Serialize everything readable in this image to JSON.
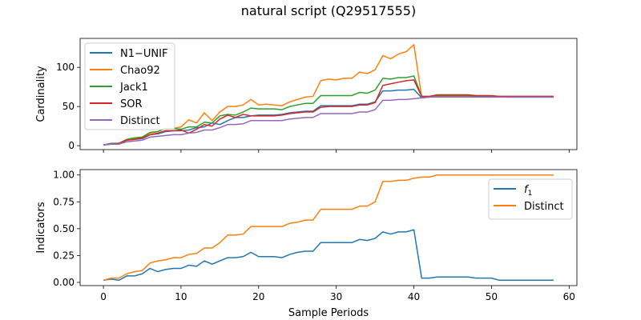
{
  "figure": {
    "title": "natural script (Q29517555)"
  },
  "chart_data": [
    {
      "type": "line",
      "ylabel": "Cardinality",
      "xlabel": "",
      "xlim": [
        -3,
        61
      ],
      "ylim": [
        -5,
        137
      ],
      "xticks": [
        0,
        10,
        20,
        30,
        40,
        50,
        60
      ],
      "show_xticklabels": false,
      "yticks": [
        0,
        50,
        100
      ],
      "legend_position": "upper-left",
      "series": [
        {
          "name": "N1−UNIF",
          "color": "#1f77b4",
          "x": [
            0,
            1,
            2,
            3,
            4,
            5,
            6,
            7,
            8,
            9,
            10,
            11,
            12,
            13,
            14,
            15,
            16,
            17,
            18,
            19,
            20,
            21,
            22,
            23,
            24,
            25,
            26,
            27,
            28,
            29,
            30,
            31,
            32,
            33,
            34,
            35,
            36,
            37,
            38,
            39,
            40,
            41,
            42,
            43,
            44,
            45,
            46,
            47,
            48,
            49,
            50,
            51,
            52,
            53,
            54,
            55,
            56,
            57,
            58
          ],
          "y": [
            1,
            2,
            2,
            7,
            8,
            9,
            14,
            15,
            18,
            19,
            19,
            20,
            23,
            24,
            29,
            27,
            32,
            36,
            36,
            38,
            39,
            39,
            39,
            40,
            42,
            43,
            44,
            44,
            51,
            51,
            51,
            51,
            51,
            53,
            53,
            56,
            70,
            70,
            71,
            71,
            72,
            61,
            62,
            64,
            64,
            64,
            64,
            64,
            64,
            63,
            63,
            63,
            62,
            62,
            62,
            62,
            62,
            62,
            62
          ]
        },
        {
          "name": "Chao92",
          "color": "#ff7f0e",
          "x": [
            0,
            1,
            2,
            3,
            4,
            5,
            6,
            7,
            8,
            9,
            10,
            11,
            12,
            13,
            14,
            15,
            16,
            17,
            18,
            19,
            20,
            21,
            22,
            23,
            24,
            25,
            26,
            27,
            28,
            29,
            30,
            31,
            32,
            33,
            34,
            35,
            36,
            37,
            38,
            39,
            40,
            41,
            42,
            43,
            44,
            45,
            46,
            47,
            48,
            49,
            50,
            51,
            52,
            53,
            54,
            55,
            56,
            57,
            58
          ],
          "y": [
            1,
            2,
            3,
            8,
            9,
            10,
            16,
            18,
            22,
            22,
            24,
            33,
            29,
            42,
            32,
            43,
            50,
            50,
            52,
            59,
            52,
            53,
            52,
            51,
            56,
            59,
            62,
            63,
            83,
            85,
            84,
            86,
            86,
            94,
            92,
            97,
            115,
            111,
            117,
            120,
            129,
            62,
            62,
            63,
            63,
            63,
            63,
            63,
            63,
            63,
            63,
            63,
            63,
            63,
            63,
            63,
            63,
            63,
            63
          ]
        },
        {
          "name": "Jack1",
          "color": "#2ca02c",
          "x": [
            0,
            1,
            2,
            3,
            4,
            5,
            6,
            7,
            8,
            9,
            10,
            11,
            12,
            13,
            14,
            15,
            16,
            17,
            18,
            19,
            20,
            21,
            22,
            23,
            24,
            25,
            26,
            27,
            28,
            29,
            30,
            31,
            32,
            33,
            34,
            35,
            36,
            37,
            38,
            39,
            40,
            41,
            42,
            43,
            44,
            45,
            46,
            47,
            48,
            49,
            50,
            51,
            52,
            53,
            54,
            55,
            56,
            57,
            58
          ],
          "y": [
            1,
            3,
            3,
            8,
            10,
            11,
            17,
            18,
            22,
            22,
            21,
            24,
            24,
            30,
            29,
            38,
            40,
            39,
            43,
            48,
            47,
            47,
            47,
            46,
            50,
            52,
            54,
            54,
            64,
            64,
            64,
            64,
            64,
            68,
            67,
            71,
            86,
            85,
            87,
            87,
            89,
            63,
            63,
            64,
            64,
            64,
            64,
            64,
            63,
            63,
            63,
            63,
            63,
            63,
            63,
            63,
            63,
            63,
            63
          ]
        },
        {
          "name": "SOR",
          "color": "#d62728",
          "x": [
            0,
            1,
            2,
            3,
            4,
            5,
            6,
            7,
            8,
            9,
            10,
            11,
            12,
            13,
            14,
            15,
            16,
            17,
            18,
            19,
            20,
            21,
            22,
            23,
            24,
            25,
            26,
            27,
            28,
            29,
            30,
            31,
            32,
            33,
            34,
            35,
            36,
            37,
            38,
            39,
            40,
            41,
            42,
            43,
            44,
            45,
            46,
            47,
            48,
            49,
            50,
            51,
            52,
            53,
            54,
            55,
            56,
            57,
            58
          ],
          "y": [
            1,
            2,
            3,
            7,
            8,
            10,
            14,
            16,
            19,
            19,
            20,
            16,
            21,
            27,
            25,
            34,
            39,
            36,
            40,
            38,
            38,
            38,
            38,
            39,
            41,
            42,
            43,
            43,
            49,
            50,
            50,
            50,
            50,
            52,
            52,
            55,
            77,
            79,
            81,
            83,
            84,
            63,
            63,
            65,
            65,
            65,
            65,
            65,
            64,
            64,
            64,
            63,
            63,
            63,
            63,
            63,
            63,
            63,
            63
          ]
        },
        {
          "name": "Distinct",
          "color": "#9467bd",
          "x": [
            0,
            1,
            2,
            3,
            4,
            5,
            6,
            7,
            8,
            9,
            10,
            11,
            12,
            13,
            14,
            15,
            16,
            17,
            18,
            19,
            20,
            21,
            22,
            23,
            24,
            25,
            26,
            27,
            28,
            29,
            30,
            31,
            32,
            33,
            34,
            35,
            36,
            37,
            38,
            39,
            40,
            41,
            42,
            43,
            44,
            45,
            46,
            47,
            48,
            49,
            50,
            51,
            52,
            53,
            54,
            55,
            56,
            57,
            58
          ],
          "y": [
            1,
            2,
            2,
            5,
            6,
            7,
            11,
            12,
            13,
            14,
            14,
            16,
            17,
            20,
            20,
            23,
            27,
            27,
            28,
            32,
            32,
            32,
            32,
            32,
            34,
            35,
            36,
            36,
            41,
            41,
            41,
            41,
            41,
            43,
            43,
            46,
            58,
            58,
            59,
            59,
            60,
            61,
            62,
            62,
            62,
            62,
            62,
            62,
            62,
            62,
            62,
            62,
            62,
            62,
            62,
            62,
            62,
            62,
            62
          ]
        }
      ]
    },
    {
      "type": "line",
      "xlabel": "Sample Periods",
      "ylabel": "Indicators",
      "xlim": [
        -3,
        61
      ],
      "ylim": [
        -0.03,
        1.05
      ],
      "xticks": [
        0,
        10,
        20,
        30,
        40,
        50,
        60
      ],
      "show_xticklabels": true,
      "yticks": [
        0.0,
        0.25,
        0.5,
        0.75,
        1.0
      ],
      "ytick_labels": [
        "0.00",
        "0.25",
        "0.50",
        "0.75",
        "1.00"
      ],
      "legend_position": "upper-right",
      "series": [
        {
          "name": "f",
          "name_subscript": "1",
          "color": "#1f77b4",
          "x": [
            0,
            1,
            2,
            3,
            4,
            5,
            6,
            7,
            8,
            9,
            10,
            11,
            12,
            13,
            14,
            15,
            16,
            17,
            18,
            19,
            20,
            21,
            22,
            23,
            24,
            25,
            26,
            27,
            28,
            29,
            30,
            31,
            32,
            33,
            34,
            35,
            36,
            37,
            38,
            39,
            40,
            41,
            42,
            43,
            44,
            45,
            46,
            47,
            48,
            49,
            50,
            51,
            52,
            53,
            54,
            55,
            56,
            57,
            58
          ],
          "y": [
            0.02,
            0.03,
            0.02,
            0.06,
            0.06,
            0.08,
            0.13,
            0.1,
            0.12,
            0.13,
            0.13,
            0.16,
            0.15,
            0.2,
            0.17,
            0.2,
            0.23,
            0.23,
            0.24,
            0.28,
            0.24,
            0.24,
            0.24,
            0.23,
            0.26,
            0.28,
            0.29,
            0.29,
            0.37,
            0.37,
            0.37,
            0.37,
            0.37,
            0.4,
            0.39,
            0.41,
            0.47,
            0.45,
            0.47,
            0.47,
            0.49,
            0.04,
            0.04,
            0.05,
            0.05,
            0.05,
            0.05,
            0.05,
            0.04,
            0.04,
            0.04,
            0.02,
            0.02,
            0.02,
            0.02,
            0.02,
            0.02,
            0.02,
            0.02
          ]
        },
        {
          "name": "Distinct",
          "color": "#ff7f0e",
          "x": [
            0,
            1,
            2,
            3,
            4,
            5,
            6,
            7,
            8,
            9,
            10,
            11,
            12,
            13,
            14,
            15,
            16,
            17,
            18,
            19,
            20,
            21,
            22,
            23,
            24,
            25,
            26,
            27,
            28,
            29,
            30,
            31,
            32,
            33,
            34,
            35,
            36,
            37,
            38,
            39,
            40,
            41,
            42,
            43,
            44,
            45,
            46,
            47,
            48,
            49,
            50,
            51,
            52,
            53,
            54,
            55,
            56,
            57,
            58
          ],
          "y": [
            0.02,
            0.04,
            0.04,
            0.08,
            0.1,
            0.11,
            0.18,
            0.2,
            0.21,
            0.23,
            0.23,
            0.26,
            0.27,
            0.32,
            0.32,
            0.37,
            0.44,
            0.44,
            0.45,
            0.52,
            0.52,
            0.52,
            0.52,
            0.52,
            0.55,
            0.56,
            0.58,
            0.58,
            0.68,
            0.68,
            0.68,
            0.68,
            0.68,
            0.71,
            0.71,
            0.75,
            0.94,
            0.94,
            0.95,
            0.95,
            0.97,
            0.98,
            0.98,
            1.0,
            1.0,
            1.0,
            1.0,
            1.0,
            1.0,
            1.0,
            1.0,
            1.0,
            1.0,
            1.0,
            1.0,
            1.0,
            1.0,
            1.0,
            1.0
          ]
        }
      ]
    }
  ]
}
